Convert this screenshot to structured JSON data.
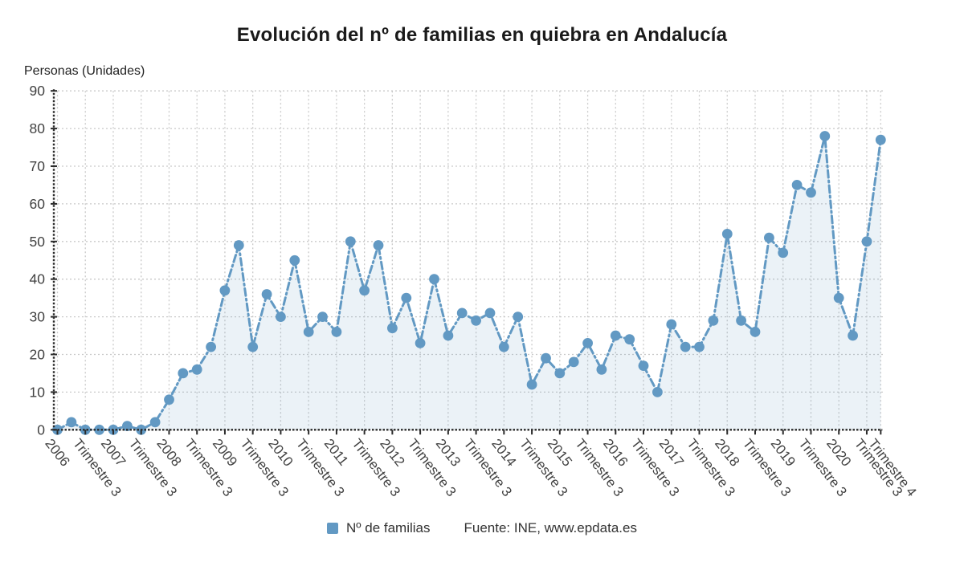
{
  "title": "Evolución del nº de familias en quiebra en Andalucía",
  "y_axis_title": "Personas (Unidades)",
  "legend": {
    "label": "Nº de familias",
    "source": "Fuente: INE, www.epdata.es"
  },
  "colors": {
    "series": "#6299C3",
    "area_fill": "rgba(98,153,195,0.13)",
    "gridline": "#c9c9c9",
    "axis": "#2b2b2b",
    "tick_text": "#414141"
  },
  "chart_data": {
    "type": "line",
    "title": "Evolución del nº de familias en quiebra en Andalucía",
    "xlabel": "",
    "ylabel": "Personas (Unidades)",
    "ylim": [
      0,
      90
    ],
    "ytick_step": 10,
    "grid": true,
    "legend_position": "bottom",
    "line_style": "dashdot",
    "marker": "circle",
    "x_ticks": [
      {
        "index": 0,
        "label": "2006"
      },
      {
        "index": 2,
        "label": "Trimestre 3"
      },
      {
        "index": 4,
        "label": "2007"
      },
      {
        "index": 6,
        "label": "Trimestre 3"
      },
      {
        "index": 8,
        "label": "2008"
      },
      {
        "index": 10,
        "label": "Trimestre 3"
      },
      {
        "index": 12,
        "label": "2009"
      },
      {
        "index": 14,
        "label": "Trimestre 3"
      },
      {
        "index": 16,
        "label": "2010"
      },
      {
        "index": 18,
        "label": "Trimestre 3"
      },
      {
        "index": 20,
        "label": "2011"
      },
      {
        "index": 22,
        "label": "Trimestre 3"
      },
      {
        "index": 24,
        "label": "2012"
      },
      {
        "index": 26,
        "label": "Trimestre 3"
      },
      {
        "index": 28,
        "label": "2013"
      },
      {
        "index": 30,
        "label": "Trimestre 3"
      },
      {
        "index": 32,
        "label": "2014"
      },
      {
        "index": 34,
        "label": "Trimestre 3"
      },
      {
        "index": 36,
        "label": "2015"
      },
      {
        "index": 38,
        "label": "Trimestre 3"
      },
      {
        "index": 40,
        "label": "2016"
      },
      {
        "index": 42,
        "label": "Trimestre 3"
      },
      {
        "index": 44,
        "label": "2017"
      },
      {
        "index": 46,
        "label": "Trimestre 3"
      },
      {
        "index": 48,
        "label": "2018"
      },
      {
        "index": 50,
        "label": "Trimestre 3"
      },
      {
        "index": 52,
        "label": "2019"
      },
      {
        "index": 54,
        "label": "Trimestre 3"
      },
      {
        "index": 56,
        "label": "2020"
      },
      {
        "index": 58,
        "label": "Trimestre 3"
      },
      {
        "index": 59,
        "label": "Trimestre 4"
      }
    ],
    "series": [
      {
        "name": "Nº de familias",
        "values": [
          0,
          2,
          0,
          0,
          0,
          1,
          0,
          2,
          8,
          15,
          16,
          22,
          37,
          49,
          22,
          36,
          30,
          45,
          26,
          30,
          26,
          50,
          37,
          49,
          27,
          35,
          23,
          40,
          25,
          31,
          29,
          31,
          22,
          30,
          12,
          19,
          15,
          18,
          23,
          16,
          25,
          24,
          17,
          10,
          28,
          22,
          22,
          29,
          52,
          29,
          26,
          51,
          47,
          65,
          63,
          78,
          35,
          25,
          50,
          77
        ]
      }
    ]
  }
}
